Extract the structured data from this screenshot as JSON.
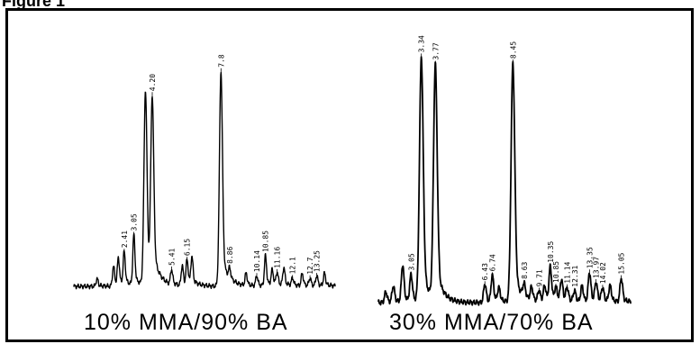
{
  "figure": {
    "heading": "Figure 1"
  },
  "chart_data": [
    {
      "type": "line",
      "title": "10% MMA/90% BA",
      "xlabel": "",
      "ylabel": "",
      "peaks": [
        {
          "t": 1.2,
          "h": 0.03,
          "label": ""
        },
        {
          "t": 2.05,
          "h": 0.08,
          "label": ""
        },
        {
          "t": 2.3,
          "h": 0.11,
          "label": ""
        },
        {
          "t": 2.6,
          "h": 0.13,
          "label": "2.41"
        },
        {
          "t": 3.1,
          "h": 0.2,
          "label": "3.05"
        },
        {
          "t": 3.7,
          "h": 0.78,
          "label": ""
        },
        {
          "t": 4.05,
          "h": 0.72,
          "label": "4.20"
        },
        {
          "t": 5.05,
          "h": 0.06,
          "label": "5.41"
        },
        {
          "t": 5.6,
          "h": 0.08,
          "label": ""
        },
        {
          "t": 5.85,
          "h": 0.1,
          "label": "6.15"
        },
        {
          "t": 6.1,
          "h": 0.11,
          "label": ""
        },
        {
          "t": 7.6,
          "h": 0.86,
          "label": "7.8"
        },
        {
          "t": 8.05,
          "h": 0.04,
          "label": "8.86"
        },
        {
          "t": 8.9,
          "h": 0.05,
          "label": ""
        },
        {
          "t": 9.45,
          "h": 0.04,
          "label": "10.14"
        },
        {
          "t": 9.9,
          "h": 0.12,
          "label": "10.85"
        },
        {
          "t": 10.25,
          "h": 0.06,
          "label": ""
        },
        {
          "t": 10.5,
          "h": 0.05,
          "label": "11.16"
        },
        {
          "t": 10.85,
          "h": 0.07,
          "label": ""
        },
        {
          "t": 11.3,
          "h": 0.03,
          "label": "12.1"
        },
        {
          "t": 11.8,
          "h": 0.05,
          "label": ""
        },
        {
          "t": 12.2,
          "h": 0.03,
          "label": "12.7"
        },
        {
          "t": 12.55,
          "h": 0.04,
          "label": "13.25"
        },
        {
          "t": 12.95,
          "h": 0.05,
          "label": ""
        }
      ]
    },
    {
      "type": "line",
      "title": "30% MMA/70% BA",
      "xlabel": "",
      "ylabel": "",
      "peaks": [
        {
          "t": 0.4,
          "h": 0.04,
          "label": ""
        },
        {
          "t": 0.8,
          "h": 0.06,
          "label": ""
        },
        {
          "t": 1.3,
          "h": 0.14,
          "label": ""
        },
        {
          "t": 1.75,
          "h": 0.1,
          "label": "3.05"
        },
        {
          "t": 2.3,
          "h": 0.92,
          "label": "3.34"
        },
        {
          "t": 3.05,
          "h": 0.88,
          "label": "3.77"
        },
        {
          "t": 5.7,
          "h": 0.07,
          "label": "6.43"
        },
        {
          "t": 6.1,
          "h": 0.1,
          "label": "6.74"
        },
        {
          "t": 6.45,
          "h": 0.05,
          "label": ""
        },
        {
          "t": 7.2,
          "h": 0.9,
          "label": "8.45"
        },
        {
          "t": 7.8,
          "h": 0.05,
          "label": "8.63"
        },
        {
          "t": 8.2,
          "h": 0.05,
          "label": ""
        },
        {
          "t": 8.6,
          "h": 0.04,
          "label": "9.71"
        },
        {
          "t": 8.9,
          "h": 0.06,
          "label": ""
        },
        {
          "t": 9.2,
          "h": 0.13,
          "label": "10.35"
        },
        {
          "t": 9.5,
          "h": 0.05,
          "label": "10.85"
        },
        {
          "t": 9.8,
          "h": 0.08,
          "label": ""
        },
        {
          "t": 10.1,
          "h": 0.05,
          "label": "11.14"
        },
        {
          "t": 10.5,
          "h": 0.04,
          "label": "12.31"
        },
        {
          "t": 10.9,
          "h": 0.06,
          "label": ""
        },
        {
          "t": 11.3,
          "h": 0.11,
          "label": "13.35"
        },
        {
          "t": 11.65,
          "h": 0.07,
          "label": "13.97"
        },
        {
          "t": 12.0,
          "h": 0.05,
          "label": "14.02"
        },
        {
          "t": 12.4,
          "h": 0.06,
          "label": ""
        },
        {
          "t": 13.0,
          "h": 0.09,
          "label": "15.05"
        }
      ]
    }
  ]
}
